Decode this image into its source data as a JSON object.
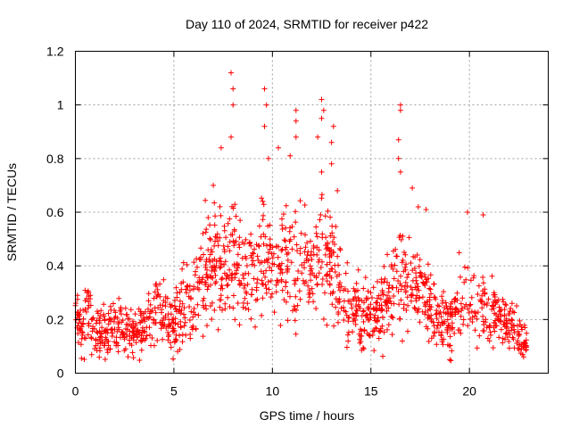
{
  "chart_data": {
    "type": "scatter",
    "title": "Day 110 of 2024, SRMTID for receiver p422",
    "xlabel": "GPS time / hours",
    "ylabel": "SRMTID / TECUs",
    "xlim": [
      0,
      24
    ],
    "ylim": [
      0,
      1.2
    ],
    "xticks": [
      0,
      5,
      10,
      15,
      20
    ],
    "xtick_labels": [
      "0",
      "5",
      "10",
      "15",
      "20"
    ],
    "yticks": [
      0,
      0.2,
      0.4,
      0.6,
      0.8,
      1.0,
      1.2
    ],
    "ytick_labels": [
      "0",
      "0.2",
      "0.4",
      "0.6",
      "0.8",
      "1",
      "1.2"
    ],
    "grid": true,
    "marker": "plus",
    "color": "#ff0000",
    "trend": [
      {
        "x": 0.0,
        "y": 0.22
      },
      {
        "x": 0.3,
        "y": 0.15
      },
      {
        "x": 0.6,
        "y": 0.25
      },
      {
        "x": 1.0,
        "y": 0.14
      },
      {
        "x": 1.5,
        "y": 0.17
      },
      {
        "x": 2.0,
        "y": 0.18
      },
      {
        "x": 2.5,
        "y": 0.16
      },
      {
        "x": 3.0,
        "y": 0.14
      },
      {
        "x": 3.5,
        "y": 0.17
      },
      {
        "x": 4.0,
        "y": 0.22
      },
      {
        "x": 4.5,
        "y": 0.24
      },
      {
        "x": 5.0,
        "y": 0.17
      },
      {
        "x": 5.5,
        "y": 0.26
      },
      {
        "x": 6.0,
        "y": 0.28
      },
      {
        "x": 6.5,
        "y": 0.38
      },
      {
        "x": 7.0,
        "y": 0.38
      },
      {
        "x": 7.5,
        "y": 0.36
      },
      {
        "x": 8.0,
        "y": 0.45
      },
      {
        "x": 8.5,
        "y": 0.36
      },
      {
        "x": 9.0,
        "y": 0.37
      },
      {
        "x": 9.5,
        "y": 0.48
      },
      {
        "x": 10.0,
        "y": 0.38
      },
      {
        "x": 10.5,
        "y": 0.44
      },
      {
        "x": 11.0,
        "y": 0.38
      },
      {
        "x": 11.5,
        "y": 0.4
      },
      {
        "x": 12.0,
        "y": 0.38
      },
      {
        "x": 12.5,
        "y": 0.45
      },
      {
        "x": 13.0,
        "y": 0.4
      },
      {
        "x": 13.5,
        "y": 0.32
      },
      {
        "x": 14.0,
        "y": 0.22
      },
      {
        "x": 14.5,
        "y": 0.24
      },
      {
        "x": 15.0,
        "y": 0.2
      },
      {
        "x": 15.5,
        "y": 0.22
      },
      {
        "x": 16.0,
        "y": 0.3
      },
      {
        "x": 16.5,
        "y": 0.38
      },
      {
        "x": 17.0,
        "y": 0.33
      },
      {
        "x": 17.5,
        "y": 0.32
      },
      {
        "x": 18.0,
        "y": 0.26
      },
      {
        "x": 18.5,
        "y": 0.2
      },
      {
        "x": 19.0,
        "y": 0.18
      },
      {
        "x": 19.5,
        "y": 0.26
      },
      {
        "x": 20.0,
        "y": 0.3
      },
      {
        "x": 20.5,
        "y": 0.26
      },
      {
        "x": 21.0,
        "y": 0.22
      },
      {
        "x": 21.5,
        "y": 0.2
      },
      {
        "x": 22.0,
        "y": 0.18
      },
      {
        "x": 22.5,
        "y": 0.15
      },
      {
        "x": 22.9,
        "y": 0.1
      }
    ],
    "peaks": [
      {
        "x": 7.9,
        "y": 1.12
      },
      {
        "x": 8.0,
        "y": 1.06
      },
      {
        "x": 8.0,
        "y": 1.0
      },
      {
        "x": 7.9,
        "y": 0.88
      },
      {
        "x": 7.4,
        "y": 0.84
      },
      {
        "x": 7.0,
        "y": 0.7
      },
      {
        "x": 9.6,
        "y": 1.06
      },
      {
        "x": 9.7,
        "y": 1.0
      },
      {
        "x": 9.6,
        "y": 0.92
      },
      {
        "x": 9.8,
        "y": 0.8
      },
      {
        "x": 10.3,
        "y": 0.84
      },
      {
        "x": 10.9,
        "y": 0.81
      },
      {
        "x": 11.2,
        "y": 0.98
      },
      {
        "x": 11.2,
        "y": 0.94
      },
      {
        "x": 11.2,
        "y": 0.88
      },
      {
        "x": 12.5,
        "y": 1.02
      },
      {
        "x": 12.6,
        "y": 0.98
      },
      {
        "x": 12.5,
        "y": 0.95
      },
      {
        "x": 12.3,
        "y": 0.88
      },
      {
        "x": 12.5,
        "y": 0.75
      },
      {
        "x": 13.1,
        "y": 0.92
      },
      {
        "x": 13.0,
        "y": 0.86
      },
      {
        "x": 13.0,
        "y": 0.78
      },
      {
        "x": 13.3,
        "y": 0.68
      },
      {
        "x": 16.5,
        "y": 1.0
      },
      {
        "x": 16.5,
        "y": 0.98
      },
      {
        "x": 16.4,
        "y": 0.87
      },
      {
        "x": 16.4,
        "y": 0.8
      },
      {
        "x": 16.5,
        "y": 0.75
      },
      {
        "x": 17.1,
        "y": 0.69
      },
      {
        "x": 17.4,
        "y": 0.62
      },
      {
        "x": 17.8,
        "y": 0.61
      },
      {
        "x": 19.9,
        "y": 0.6
      },
      {
        "x": 20.7,
        "y": 0.59
      },
      {
        "x": 18.9,
        "y": 0.22
      },
      {
        "x": 19.0,
        "y": 0.05
      }
    ]
  }
}
